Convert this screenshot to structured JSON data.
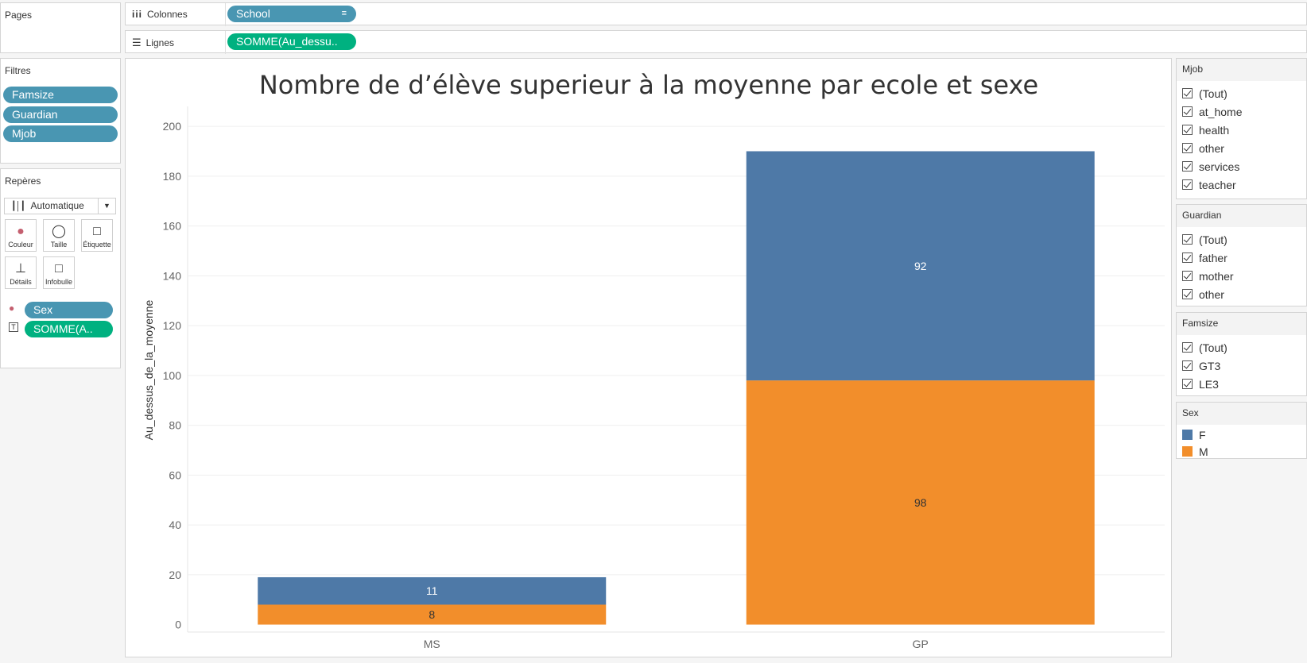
{
  "shelves": {
    "pages_title": "Pages",
    "columns_label": "Colonnes",
    "columns_pill": "School",
    "rows_label": "Lignes",
    "rows_pill": "SOMME(Au_dessu.."
  },
  "filters": {
    "title": "Filtres",
    "items": [
      "Famsize",
      "Guardian",
      "Mjob"
    ]
  },
  "marks": {
    "title": "Repères",
    "mark_type": "Automatique",
    "buttons": [
      "Couleur",
      "Taille",
      "Étiquette",
      "Détails",
      "Infobulle"
    ],
    "color_pill": "Sex",
    "label_pill": "SOMME(A.."
  },
  "right_cards": {
    "mjob": {
      "title": "Mjob",
      "items": [
        "(Tout)",
        "at_home",
        "health",
        "other",
        "services",
        "teacher"
      ]
    },
    "guardian": {
      "title": "Guardian",
      "items": [
        "(Tout)",
        "father",
        "mother",
        "other"
      ]
    },
    "famsize": {
      "title": "Famsize",
      "items": [
        "(Tout)",
        "GT3",
        "LE3"
      ]
    },
    "sex": {
      "title": "Sex",
      "items": [
        {
          "label": "F",
          "color": "#4e79a7"
        },
        {
          "label": "M",
          "color": "#f28e2b"
        }
      ]
    }
  },
  "chart_data": {
    "type": "bar",
    "stacked": true,
    "title": "Nombre de d’élève superieur à la moyenne par ecole et sexe",
    "ylabel": "Au_dessus_de_la_moyenne",
    "xlabel": "",
    "categories": [
      "MS",
      "GP"
    ],
    "series": [
      {
        "name": "M",
        "color": "#f28e2b",
        "values": [
          8,
          98
        ]
      },
      {
        "name": "F",
        "color": "#4e79a7",
        "values": [
          11,
          92
        ]
      }
    ],
    "ylim": [
      0,
      200
    ],
    "yticks": [
      0,
      20,
      40,
      60,
      80,
      100,
      120,
      140,
      160,
      180,
      200
    ],
    "grid": true
  }
}
